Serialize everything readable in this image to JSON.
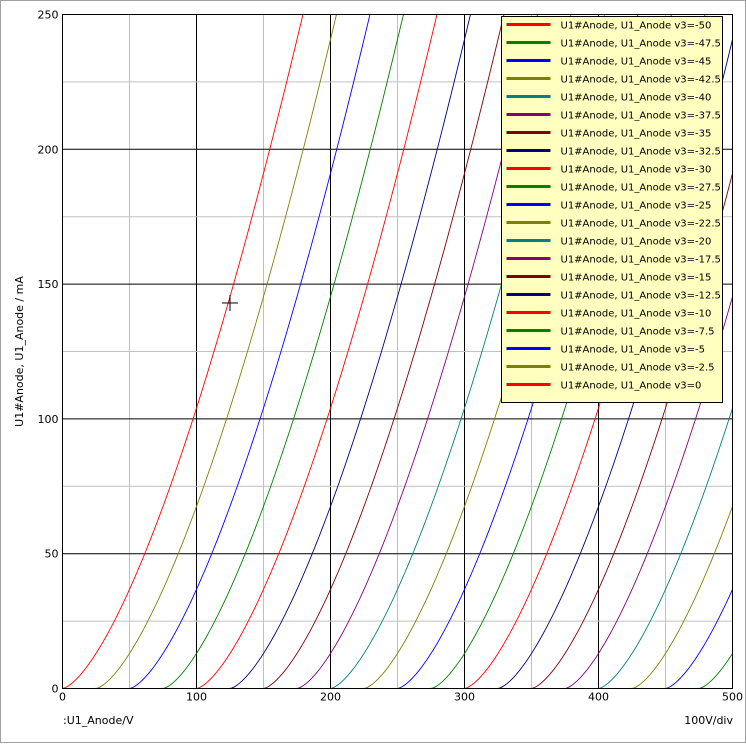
{
  "chart_data": {
    "type": "line",
    "xlabel": ":U1_Anode/V",
    "ylabel": "U1#Anode, U1_Anode / mA",
    "scale_note": "100V/div",
    "xlim": [
      0,
      500
    ],
    "ylim": [
      0,
      250
    ],
    "x_ticks": [
      0,
      100,
      200,
      300,
      400,
      500
    ],
    "y_ticks": [
      0,
      50,
      100,
      150,
      200,
      250
    ],
    "grid": true,
    "legend_position": "top-right",
    "cursor": {
      "x": 125,
      "y": 143
    },
    "curve_model": {
      "mu": 10,
      "exponent": 1.5,
      "k": 0.104
    },
    "series": [
      {
        "name": "U1#Anode, U1_Anode v3=-50",
        "grid_voltage": -50,
        "color": "#ff0000"
      },
      {
        "name": "U1#Anode, U1_Anode v3=-47.5",
        "grid_voltage": -47.5,
        "color": "#008000"
      },
      {
        "name": "U1#Anode, U1_Anode v3=-45",
        "grid_voltage": -45,
        "color": "#0000ff"
      },
      {
        "name": "U1#Anode, U1_Anode v3=-42.5",
        "grid_voltage": -42.5,
        "color": "#808000"
      },
      {
        "name": "U1#Anode, U1_Anode v3=-40",
        "grid_voltage": -40,
        "color": "#008080"
      },
      {
        "name": "U1#Anode, U1_Anode v3=-37.5",
        "grid_voltage": -37.5,
        "color": "#800080"
      },
      {
        "name": "U1#Anode, U1_Anode v3=-35",
        "grid_voltage": -35,
        "color": "#800000"
      },
      {
        "name": "U1#Anode, U1_Anode v3=-32.5",
        "grid_voltage": -32.5,
        "color": "#000080"
      },
      {
        "name": "U1#Anode, U1_Anode v3=-30",
        "grid_voltage": -30,
        "color": "#ff0000"
      },
      {
        "name": "U1#Anode, U1_Anode v3=-27.5",
        "grid_voltage": -27.5,
        "color": "#008000"
      },
      {
        "name": "U1#Anode, U1_Anode v3=-25",
        "grid_voltage": -25,
        "color": "#0000ff"
      },
      {
        "name": "U1#Anode, U1_Anode v3=-22.5",
        "grid_voltage": -22.5,
        "color": "#808000"
      },
      {
        "name": "U1#Anode, U1_Anode v3=-20",
        "grid_voltage": -20,
        "color": "#008080"
      },
      {
        "name": "U1#Anode, U1_Anode v3=-17.5",
        "grid_voltage": -17.5,
        "color": "#800080"
      },
      {
        "name": "U1#Anode, U1_Anode v3=-15",
        "grid_voltage": -15,
        "color": "#800000"
      },
      {
        "name": "U1#Anode, U1_Anode v3=-12.5",
        "grid_voltage": -12.5,
        "color": "#000080"
      },
      {
        "name": "U1#Anode, U1_Anode v3=-10",
        "grid_voltage": -10,
        "color": "#ff0000"
      },
      {
        "name": "U1#Anode, U1_Anode v3=-7.5",
        "grid_voltage": -7.5,
        "color": "#008000"
      },
      {
        "name": "U1#Anode, U1_Anode v3=-5",
        "grid_voltage": -5,
        "color": "#0000ff"
      },
      {
        "name": "U1#Anode, U1_Anode v3=-2.5",
        "grid_voltage": -2.5,
        "color": "#808000"
      },
      {
        "name": "U1#Anode, U1_Anode v3=0",
        "grid_voltage": 0,
        "color": "#ff0000"
      }
    ]
  }
}
